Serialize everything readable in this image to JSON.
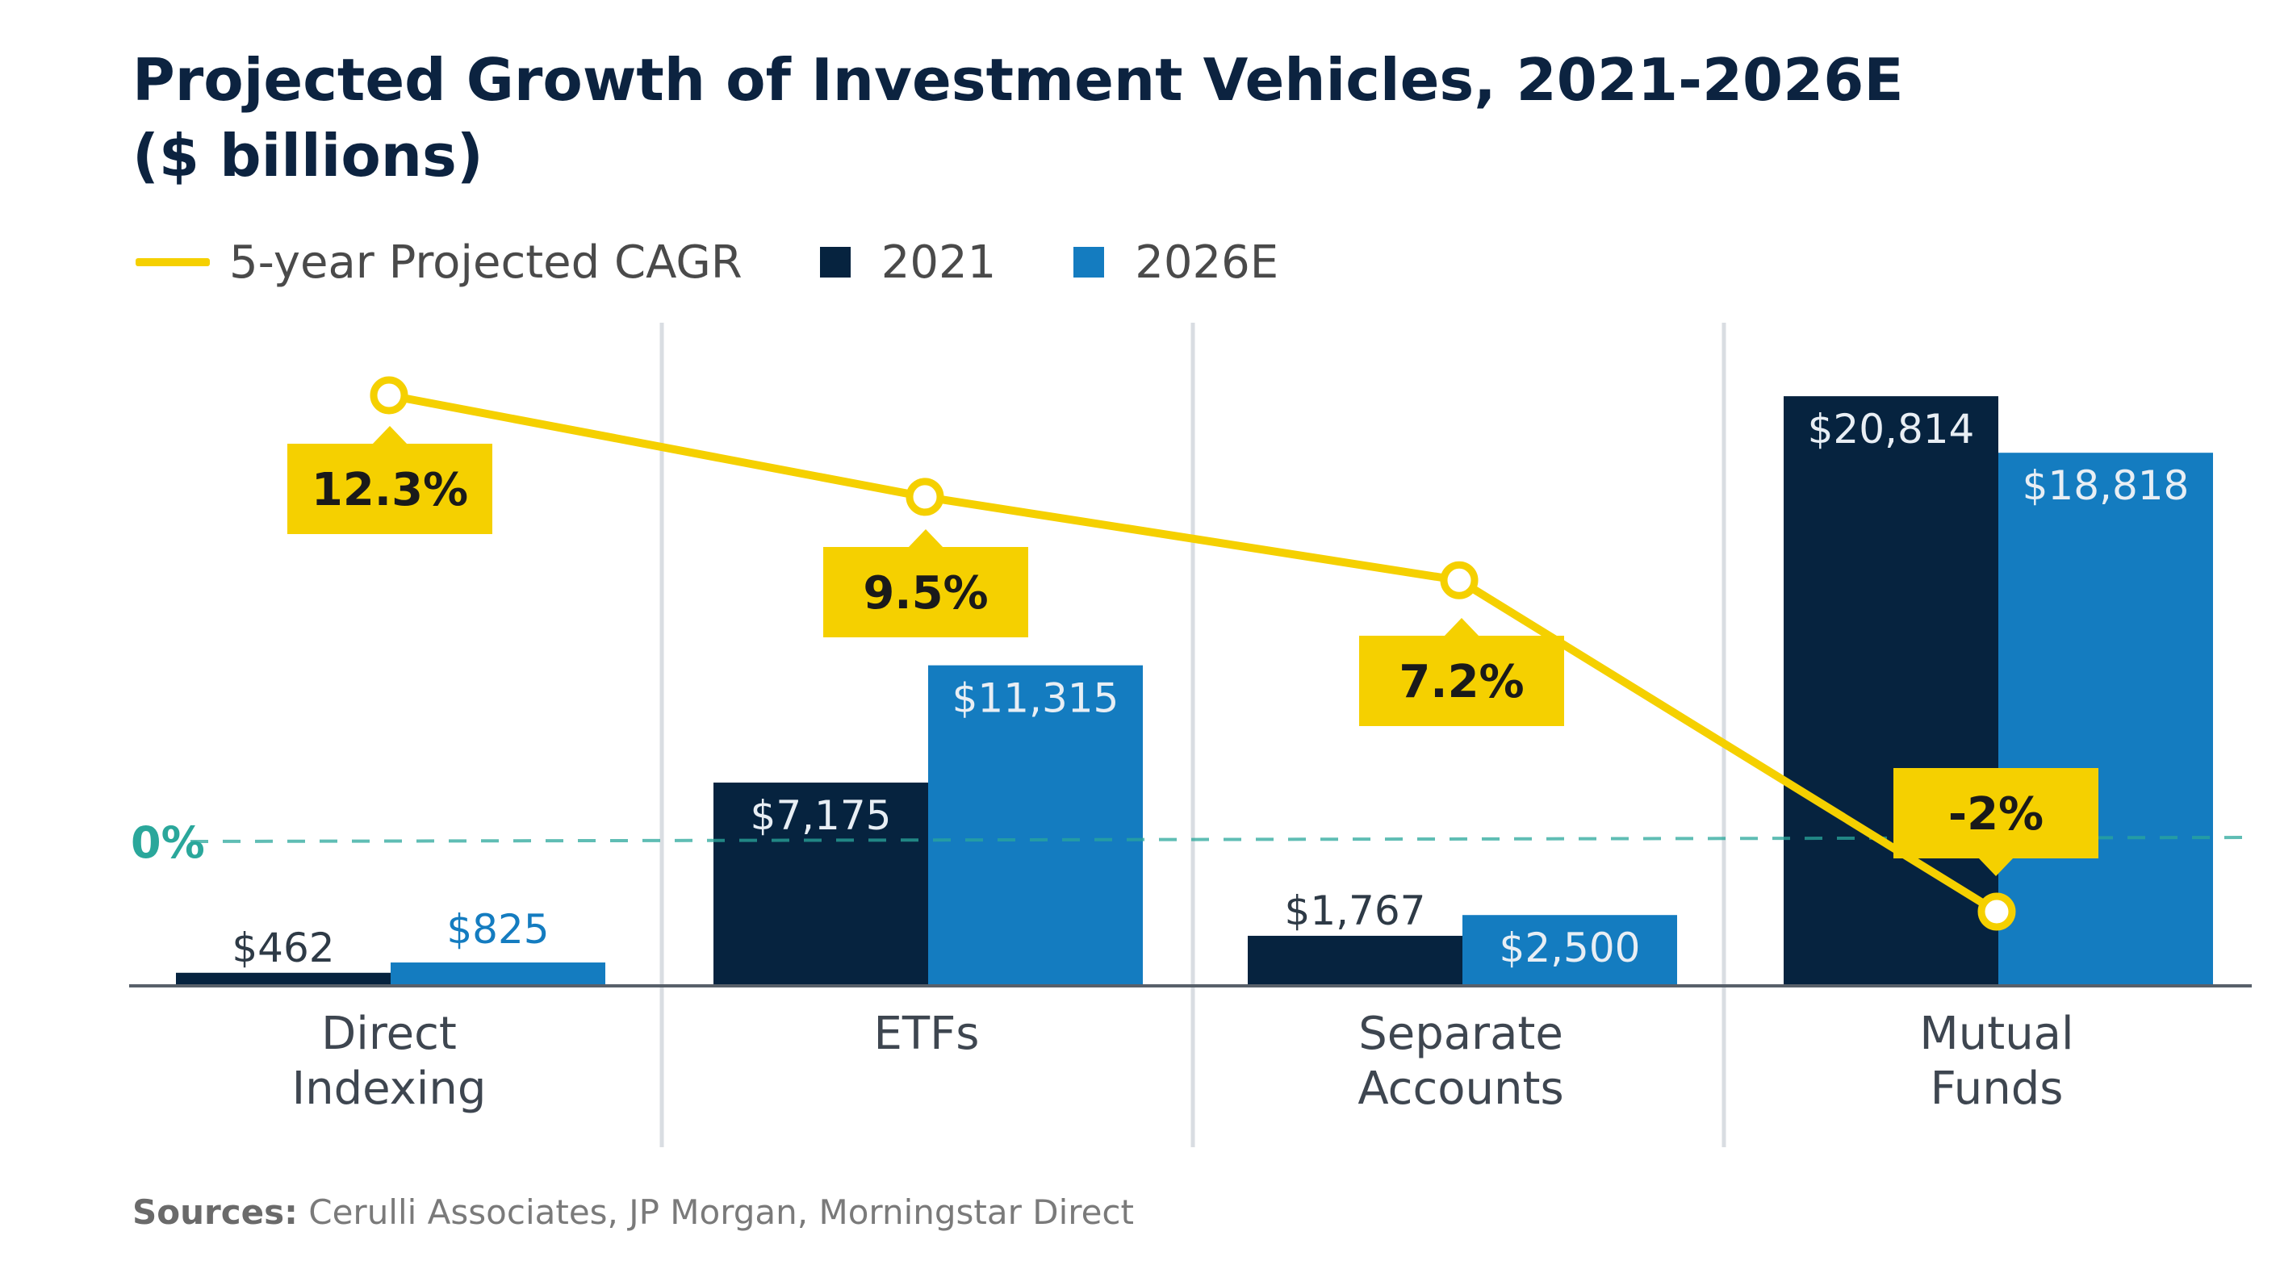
{
  "title_line1": "Projected Growth of Investment Vehicles, 2021-2026E",
  "title_line2": "($ billions)",
  "legend": {
    "cagr_label": "5-year Projected CAGR",
    "series1_label": "2021",
    "series2_label": "2026E"
  },
  "colors": {
    "navy": "#06233f",
    "blue": "#147cc0",
    "yellow": "#f5d000",
    "teal": "#2aa79b"
  },
  "chart_data": {
    "type": "bar",
    "categories": [
      "Direct\nIndexing",
      "ETFs",
      "Separate\nAccounts",
      "Mutual\nFunds"
    ],
    "series": [
      {
        "name": "2021",
        "values": [
          462,
          7175,
          1767,
          20814
        ],
        "labels": [
          "$462",
          "$7,175",
          "$1,767",
          "$20,814"
        ]
      },
      {
        "name": "2026E",
        "values": [
          825,
          11315,
          2500,
          18818
        ],
        "labels": [
          "$825",
          "$11,315",
          "$2,500",
          "$18,818"
        ]
      }
    ],
    "line_series": {
      "name": "5-year Projected CAGR",
      "values": [
        12.3,
        9.5,
        7.2,
        -2
      ],
      "labels": [
        "12.3%",
        "9.5%",
        "7.2%",
        "-2%"
      ]
    },
    "reference_line": {
      "value": 0,
      "label": "0%"
    },
    "ylim_bars": [
      0,
      23000
    ],
    "ylim_line": [
      -4,
      15
    ],
    "grid": false,
    "legend_position": "top-left"
  },
  "sources_label": "Sources:",
  "sources_text": " Cerulli Associates, JP Morgan, Morningstar Direct"
}
